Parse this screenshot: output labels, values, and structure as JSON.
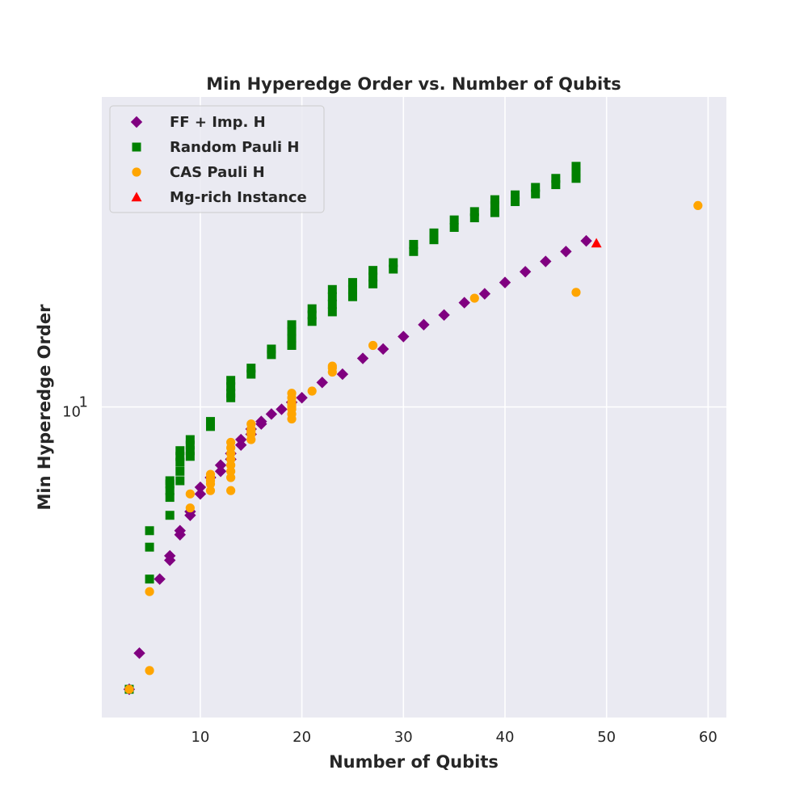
{
  "chart_data": {
    "type": "scatter",
    "title": "Min Hyperedge Order vs. Number of Qubits",
    "xlabel": "Number of Qubits",
    "ylabel": "Min Hyperedge Order",
    "xlim": [
      0.3,
      61.8
    ],
    "ylim": [
      2.66,
      37.5
    ],
    "yscale": "log",
    "xticks": [
      10,
      20,
      30,
      40,
      50,
      60
    ],
    "yticks": [
      {
        "value": 10,
        "base": "10",
        "exp": "1"
      }
    ],
    "grid": true,
    "legend_position": "top-left",
    "series": [
      {
        "name": "FF + Imp. H",
        "marker": "diamond",
        "color": "#800080",
        "points": [
          [
            3,
            3
          ],
          [
            4,
            3.5
          ],
          [
            6,
            4.8
          ],
          [
            7,
            5.2
          ],
          [
            7,
            5.3
          ],
          [
            8,
            5.8
          ],
          [
            8,
            5.9
          ],
          [
            9,
            6.3
          ],
          [
            9,
            6.4
          ],
          [
            10,
            6.9
          ],
          [
            10,
            7.1
          ],
          [
            11,
            7.4
          ],
          [
            12,
            7.6
          ],
          [
            12,
            7.8
          ],
          [
            13,
            8.0
          ],
          [
            13,
            8.2
          ],
          [
            14,
            8.5
          ],
          [
            14,
            8.7
          ],
          [
            15,
            8.9
          ],
          [
            15,
            9.1
          ],
          [
            16,
            9.3
          ],
          [
            16,
            9.4
          ],
          [
            17,
            9.7
          ],
          [
            18,
            9.9
          ],
          [
            19,
            10.2
          ],
          [
            20,
            10.4
          ],
          [
            22,
            11.1
          ],
          [
            24,
            11.5
          ],
          [
            26,
            12.3
          ],
          [
            28,
            12.8
          ],
          [
            30,
            13.5
          ],
          [
            32,
            14.2
          ],
          [
            34,
            14.8
          ],
          [
            36,
            15.6
          ],
          [
            38,
            16.2
          ],
          [
            40,
            17.0
          ],
          [
            42,
            17.8
          ],
          [
            44,
            18.6
          ],
          [
            46,
            19.4
          ],
          [
            48,
            20.3
          ]
        ]
      },
      {
        "name": "Random Pauli H",
        "marker": "square",
        "color": "#008000",
        "points": [
          [
            3,
            3
          ],
          [
            5,
            4.8
          ],
          [
            5,
            5.5
          ],
          [
            5,
            5.9
          ],
          [
            7,
            6.3
          ],
          [
            7,
            6.8
          ],
          [
            7,
            7.0
          ],
          [
            7,
            7.2
          ],
          [
            7,
            7.3
          ],
          [
            8,
            7.3
          ],
          [
            8,
            7.6
          ],
          [
            8,
            7.9
          ],
          [
            8,
            8.1
          ],
          [
            8,
            8.3
          ],
          [
            9,
            8.1
          ],
          [
            9,
            8.3
          ],
          [
            9,
            8.5
          ],
          [
            9,
            8.7
          ],
          [
            11,
            9.2
          ],
          [
            11,
            9.4
          ],
          [
            13,
            10.4
          ],
          [
            13,
            10.6
          ],
          [
            13,
            10.9
          ],
          [
            13,
            11.2
          ],
          [
            15,
            11.5
          ],
          [
            15,
            11.8
          ],
          [
            17,
            12.5
          ],
          [
            17,
            12.8
          ],
          [
            19,
            13.0
          ],
          [
            19,
            13.4
          ],
          [
            19,
            13.8
          ],
          [
            19,
            14.2
          ],
          [
            21,
            14.4
          ],
          [
            21,
            14.8
          ],
          [
            21,
            15.2
          ],
          [
            23,
            15.0
          ],
          [
            23,
            15.5
          ],
          [
            23,
            16.0
          ],
          [
            23,
            16.5
          ],
          [
            25,
            16.0
          ],
          [
            25,
            16.5
          ],
          [
            25,
            17.0
          ],
          [
            27,
            16.9
          ],
          [
            27,
            17.4
          ],
          [
            27,
            17.9
          ],
          [
            29,
            18.0
          ],
          [
            29,
            18.5
          ],
          [
            31,
            19.4
          ],
          [
            31,
            20.0
          ],
          [
            33,
            20.4
          ],
          [
            33,
            21.0
          ],
          [
            35,
            21.5
          ],
          [
            35,
            22.2
          ],
          [
            37,
            22.4
          ],
          [
            37,
            23.0
          ],
          [
            39,
            22.9
          ],
          [
            39,
            23.6
          ],
          [
            39,
            24.2
          ],
          [
            41,
            24.0
          ],
          [
            41,
            24.7
          ],
          [
            43,
            24.8
          ],
          [
            43,
            25.5
          ],
          [
            45,
            25.8
          ],
          [
            45,
            26.5
          ],
          [
            47,
            26.5
          ],
          [
            47,
            27.2
          ],
          [
            47,
            27.9
          ]
        ]
      },
      {
        "name": "CAS Pauli H",
        "marker": "circle",
        "color": "#FFA500",
        "points": [
          [
            3,
            3
          ],
          [
            5,
            3.25
          ],
          [
            5,
            4.55
          ],
          [
            9,
            6.5
          ],
          [
            9,
            6.9
          ],
          [
            11,
            7.0
          ],
          [
            11,
            7.2
          ],
          [
            11,
            7.3
          ],
          [
            11,
            7.4
          ],
          [
            11,
            7.5
          ],
          [
            13,
            7.0
          ],
          [
            13,
            7.4
          ],
          [
            13,
            7.6
          ],
          [
            13,
            7.8
          ],
          [
            13,
            8.0
          ],
          [
            13,
            8.2
          ],
          [
            13,
            8.4
          ],
          [
            13,
            8.6
          ],
          [
            15,
            8.7
          ],
          [
            15,
            8.9
          ],
          [
            15,
            9.0
          ],
          [
            15,
            9.1
          ],
          [
            15,
            9.3
          ],
          [
            19,
            9.5
          ],
          [
            19,
            9.7
          ],
          [
            19,
            9.9
          ],
          [
            19,
            10.0
          ],
          [
            19,
            10.1
          ],
          [
            19,
            10.2
          ],
          [
            19,
            10.4
          ],
          [
            19,
            10.6
          ],
          [
            21,
            10.7
          ],
          [
            23,
            11.6
          ],
          [
            23,
            11.8
          ],
          [
            23,
            11.9
          ],
          [
            27,
            13.0
          ],
          [
            37,
            15.9
          ],
          [
            47,
            16.3
          ],
          [
            59,
            23.6
          ]
        ]
      },
      {
        "name": "Mg-rich Instance",
        "marker": "triangle",
        "color": "#FF0000",
        "points": [
          [
            49,
            20.1
          ]
        ]
      }
    ]
  }
}
